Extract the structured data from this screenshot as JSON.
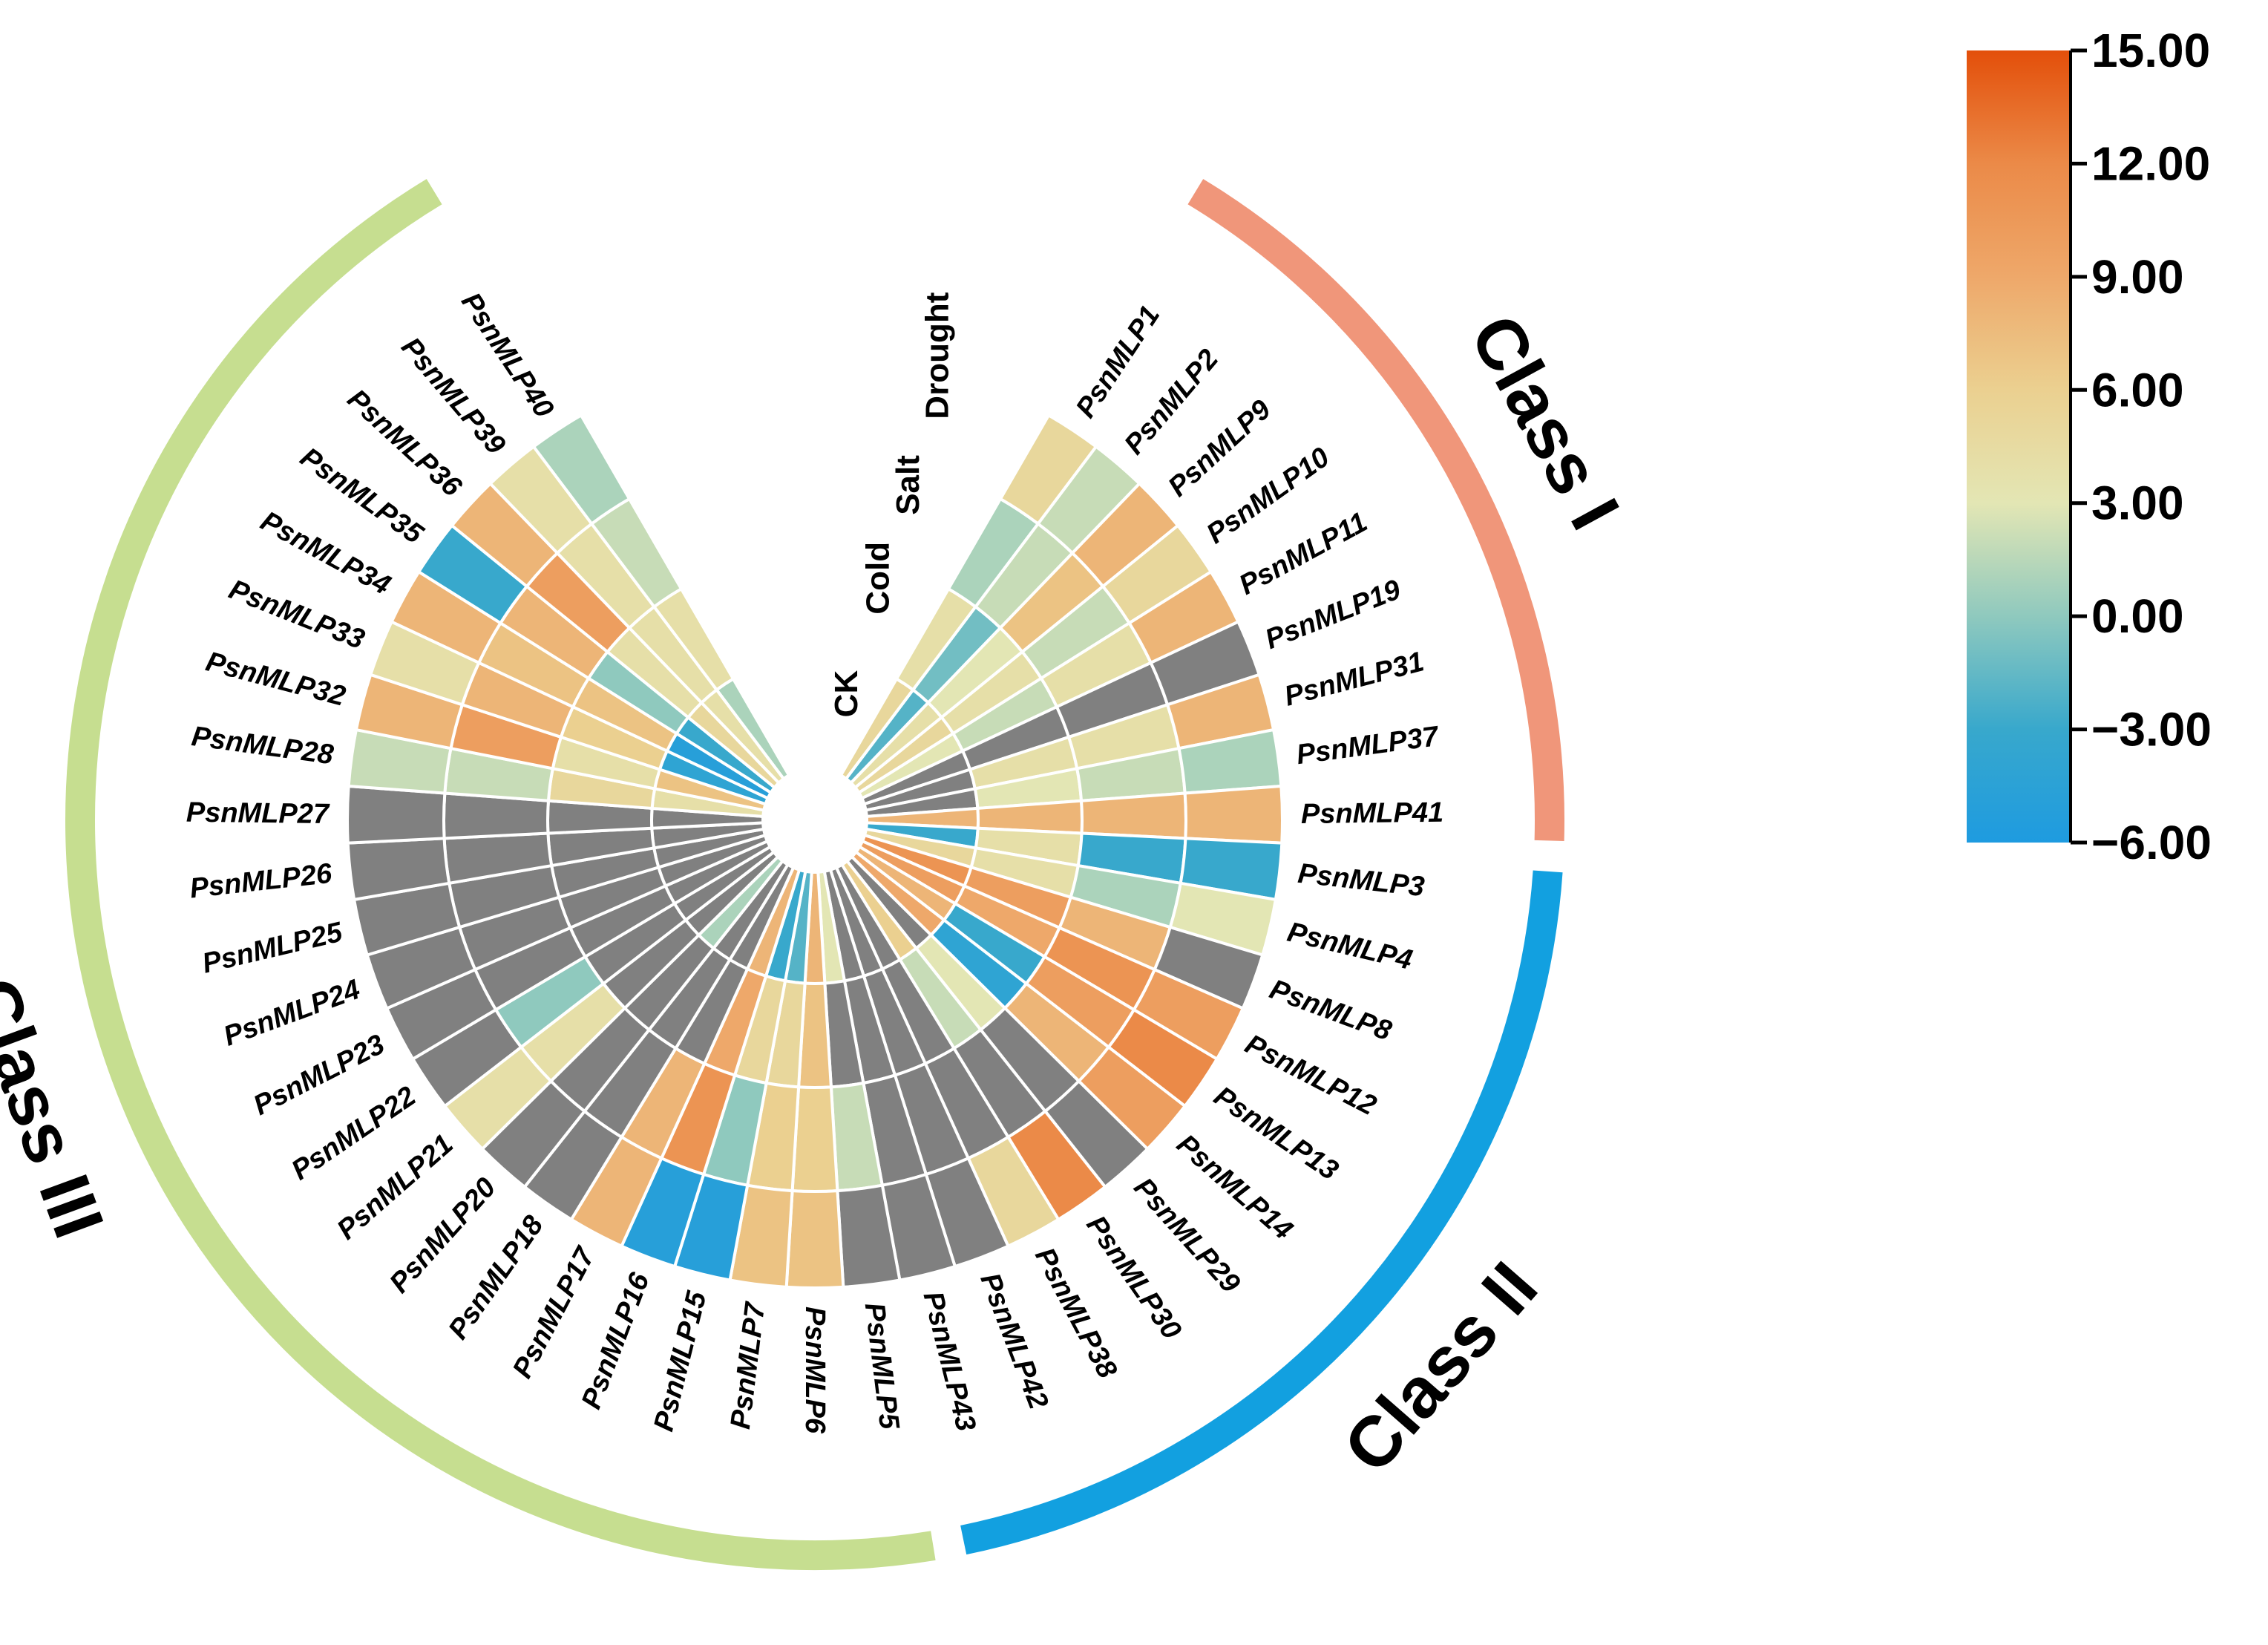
{
  "chart_data": {
    "type": "heatmap",
    "layout": "circular",
    "tracks": [
      "CK",
      "Cold",
      "Salt",
      "Drought"
    ],
    "na_color": "#808080",
    "genes": [
      {
        "name": "PsnMLP1",
        "class": "Class I",
        "values": [
          5,
          4,
          1,
          5
        ]
      },
      {
        "name": "PsnMLP2",
        "class": "Class I",
        "values": [
          -2,
          -1,
          2,
          2
        ]
      },
      {
        "name": "PsnMLP9",
        "class": "Class I",
        "values": [
          4,
          3,
          7,
          8
        ]
      },
      {
        "name": "PsnMLP10",
        "class": "Class I",
        "values": [
          5,
          4,
          2,
          5
        ]
      },
      {
        "name": "PsnMLP11",
        "class": "Class I",
        "values": [
          3,
          2,
          4,
          8
        ]
      },
      {
        "name": "PsnMLP19",
        "class": "Class I",
        "values": [
          null,
          null,
          null,
          null
        ]
      },
      {
        "name": "PsnMLP31",
        "class": "Class I",
        "values": [
          null,
          4,
          4,
          8
        ]
      },
      {
        "name": "PsnMLP37",
        "class": "Class I",
        "values": [
          null,
          3,
          2,
          1
        ]
      },
      {
        "name": "PsnMLP41",
        "class": "Class I",
        "values": [
          8,
          8,
          8,
          8
        ]
      },
      {
        "name": "PsnMLP3",
        "class": "Class II",
        "values": [
          -3,
          4,
          -3,
          -3
        ]
      },
      {
        "name": "PsnMLP4",
        "class": "Class II",
        "values": [
          5,
          4,
          1,
          3
        ]
      },
      {
        "name": "PsnMLP8",
        "class": "Class II",
        "values": [
          11,
          10,
          8,
          null
        ]
      },
      {
        "name": "PsnMLP12",
        "class": "Class II",
        "values": [
          10,
          9,
          11,
          10
        ]
      },
      {
        "name": "PsnMLP13",
        "class": "Class II",
        "values": [
          8,
          -3,
          10,
          12
        ]
      },
      {
        "name": "PsnMLP14",
        "class": "Class II",
        "values": [
          9,
          -4,
          8,
          10
        ]
      },
      {
        "name": "PsnMLP29",
        "class": "Class II",
        "values": [
          null,
          3,
          null,
          null
        ]
      },
      {
        "name": "PsnMLP30",
        "class": "Class II",
        "values": [
          6,
          2,
          null,
          12
        ]
      },
      {
        "name": "PsnMLP38",
        "class": "Class II",
        "values": [
          null,
          null,
          null,
          5
        ]
      },
      {
        "name": "PsnMLP42",
        "class": "Class II",
        "values": [
          null,
          null,
          null,
          null
        ]
      },
      {
        "name": "PsnMLP43",
        "class": "Class II",
        "values": [
          null,
          null,
          null,
          null
        ]
      },
      {
        "name": "PsnMLP5",
        "class": "Class III",
        "values": [
          3,
          null,
          2,
          null
        ]
      },
      {
        "name": "PsnMLP6",
        "class": "Class III",
        "values": [
          8,
          7,
          6,
          7
        ]
      },
      {
        "name": "PsnMLP7",
        "class": "Class III",
        "values": [
          -2,
          5,
          6,
          7
        ]
      },
      {
        "name": "PsnMLP15",
        "class": "Class III",
        "values": [
          -3,
          5,
          0,
          -5
        ]
      },
      {
        "name": "PsnMLP16",
        "class": "Class III",
        "values": [
          8,
          9,
          11,
          -5
        ]
      },
      {
        "name": "PsnMLP17",
        "class": "Class III",
        "values": [
          null,
          null,
          8,
          8
        ]
      },
      {
        "name": "PsnMLP18",
        "class": "Class III",
        "values": [
          null,
          null,
          null,
          null
        ]
      },
      {
        "name": "PsnMLP20",
        "class": "Class III",
        "values": [
          1,
          null,
          null,
          null
        ]
      },
      {
        "name": "PsnMLP21",
        "class": "Class III",
        "values": [
          null,
          null,
          4,
          4
        ]
      },
      {
        "name": "PsnMLP22",
        "class": "Class III",
        "values": [
          null,
          null,
          0,
          null
        ]
      },
      {
        "name": "PsnMLP23",
        "class": "Class III",
        "values": [
          null,
          null,
          null,
          null
        ]
      },
      {
        "name": "PsnMLP24",
        "class": "Class III",
        "values": [
          null,
          null,
          null,
          null
        ]
      },
      {
        "name": "PsnMLP25",
        "class": "Class III",
        "values": [
          null,
          null,
          null,
          null
        ]
      },
      {
        "name": "PsnMLP26",
        "class": "Class III",
        "values": [
          null,
          null,
          null,
          null
        ]
      },
      {
        "name": "PsnMLP27",
        "class": "Class III",
        "values": [
          null,
          null,
          null,
          null
        ]
      },
      {
        "name": "PsnMLP28",
        "class": "Class III",
        "values": [
          4,
          5,
          2,
          2
        ]
      },
      {
        "name": "PsnMLP32",
        "class": "Class III",
        "values": [
          7,
          4,
          10,
          8
        ]
      },
      {
        "name": "PsnMLP33",
        "class": "Class III",
        "values": [
          -4,
          6,
          8,
          4
        ]
      },
      {
        "name": "PsnMLP34",
        "class": "Class III",
        "values": [
          -5,
          7,
          7,
          8
        ]
      },
      {
        "name": "PsnMLP35",
        "class": "Class III",
        "values": [
          -3,
          0,
          8,
          -3
        ]
      },
      {
        "name": "PsnMLP36",
        "class": "Class III",
        "values": [
          5,
          4,
          10,
          8
        ]
      },
      {
        "name": "PsnMLP39",
        "class": "Class III",
        "values": [
          4,
          4,
          4,
          4
        ]
      },
      {
        "name": "PsnMLP40",
        "class": "Class III",
        "values": [
          1,
          4,
          2,
          1
        ]
      }
    ],
    "classes": [
      {
        "name": "Class I",
        "color": "#F0967A"
      },
      {
        "name": "Class II",
        "color": "#12A0E0"
      },
      {
        "name": "Class III",
        "color": "#C6DE90"
      }
    ],
    "color_scale": {
      "min": -6,
      "max": 15,
      "stops": [
        {
          "value": -6,
          "color": "#1E9BE0"
        },
        {
          "value": -3,
          "color": "#38A8CC"
        },
        {
          "value": 0,
          "color": "#8FC9BE"
        },
        {
          "value": 3,
          "color": "#E3E6B4"
        },
        {
          "value": 6,
          "color": "#EBD090"
        },
        {
          "value": 9,
          "color": "#EEA86A"
        },
        {
          "value": 12,
          "color": "#EB8A48"
        },
        {
          "value": 15,
          "color": "#E34F0A"
        }
      ],
      "ticks": [
        "15.00",
        "12.00",
        "9.00",
        "6.00",
        "3.00",
        "0.00",
        "−3.00",
        "−6.00"
      ]
    }
  }
}
